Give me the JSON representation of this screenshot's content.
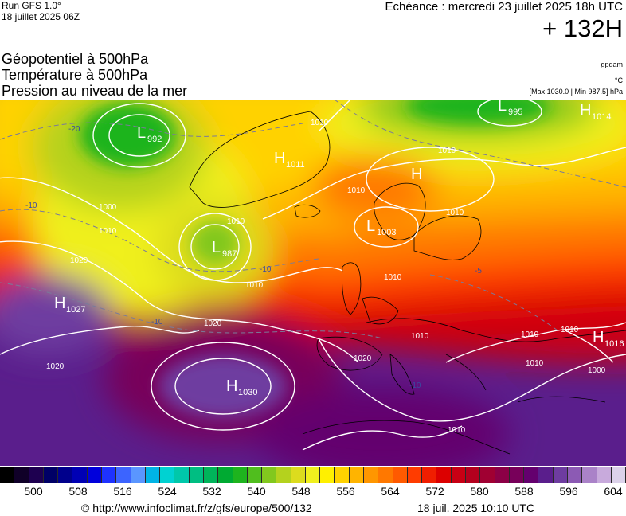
{
  "header": {
    "run": "Run GFS 1.0°",
    "run_date": "18 juillet 2025 06Z",
    "echeance": "Echéance : mercredi 23 juillet 2025 18h UTC",
    "horizon": "+ 132H"
  },
  "titles": {
    "line1": "Géopotentiel à 500hPa",
    "line2": "Température à 500hPa",
    "line3": "Pression au niveau de la mer"
  },
  "units": {
    "geopotential": "gpdam",
    "temperature": "°C",
    "pressure_range": "[Max 1030.0 | Min 987.5] hPa"
  },
  "legend": {
    "ticks": [
      "500",
      "508",
      "516",
      "524",
      "532",
      "540",
      "548",
      "556",
      "564",
      "572",
      "580",
      "588",
      "596",
      "604"
    ],
    "colors": [
      "#000000",
      "#100028",
      "#1e0050",
      "#000066",
      "#00008c",
      "#0000b4",
      "#0000dc",
      "#1e32ff",
      "#3c64ff",
      "#5a96ff",
      "#00b4e6",
      "#00d2d2",
      "#00c8aa",
      "#00be82",
      "#00b45a",
      "#00aa32",
      "#1eb41e",
      "#50be1e",
      "#82c81e",
      "#b4d21e",
      "#dcdc1e",
      "#f0f01e",
      "#fff000",
      "#ffd200",
      "#ffb400",
      "#ff9600",
      "#ff7800",
      "#ff5a00",
      "#ff3c00",
      "#f01e00",
      "#dc0000",
      "#c80014",
      "#b4001e",
      "#a00032",
      "#8c0046",
      "#78005a",
      "#64006e",
      "#5a1e8c",
      "#6e3ca0",
      "#8c5ab4",
      "#aa82c8",
      "#c8aadc",
      "#dcd2ea"
    ]
  },
  "map": {
    "lows": [
      {
        "letter": "L",
        "value": "992"
      },
      {
        "letter": "L",
        "value": "987"
      },
      {
        "letter": "L",
        "value": "1003"
      },
      {
        "letter": "L",
        "value": "995"
      }
    ],
    "highs": [
      {
        "letter": "H",
        "value": "1011"
      },
      {
        "letter": "H",
        "value": "1027"
      },
      {
        "letter": "H",
        "value": "1030"
      },
      {
        "letter": "H",
        "value": "1014"
      },
      {
        "letter": "H",
        "value": "1016"
      },
      {
        "letter": "H",
        "value": ""
      }
    ],
    "isobar_labels": [
      "1000",
      "1010",
      "1020",
      "1010",
      "1010",
      "1020",
      "1020",
      "1010",
      "1010",
      "1010",
      "1010",
      "1010",
      "1010",
      "1000",
      "1010",
      "1010",
      "1010",
      "1020",
      "1010"
    ],
    "temp_labels": [
      "-20",
      "-10",
      "-10",
      "-10",
      "-10",
      "-5"
    ]
  },
  "footer": {
    "source": "© http://www.infoclimat.fr/z/gfs/europe/500/132",
    "generated": "18 juil. 2025 10:10 UTC"
  }
}
